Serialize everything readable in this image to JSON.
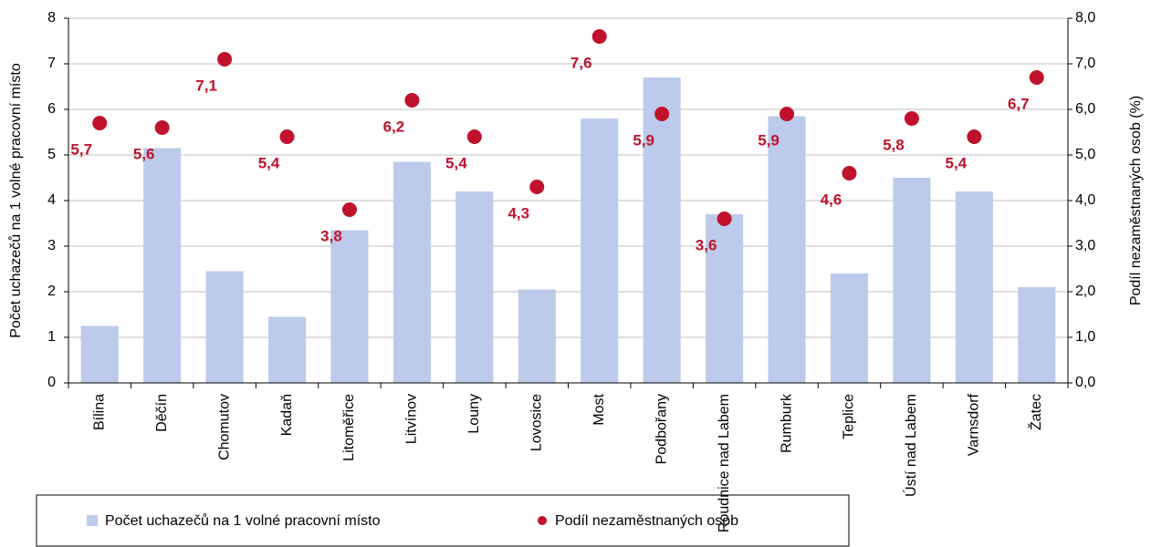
{
  "chart_data": {
    "type": "bar_scatter",
    "categories": [
      "Bílina",
      "Děčín",
      "Chomutov",
      "Kadaň",
      "Litoměřice",
      "Litvínov",
      "Louny",
      "Lovosice",
      "Most",
      "Podbořany",
      "Roudnice nad Labem",
      "Rumburk",
      "Teplice",
      "Ústí nad Labem",
      "Varnsdorf",
      "Žatec"
    ],
    "series": [
      {
        "name": "Počet uchazečů na 1 volné pracovní místo",
        "type": "bar",
        "color": "#bccbeb",
        "values": [
          1.25,
          5.15,
          2.45,
          1.45,
          3.35,
          4.85,
          4.2,
          2.05,
          5.8,
          6.7,
          3.7,
          5.85,
          2.4,
          4.5,
          4.2,
          2.1
        ]
      },
      {
        "name": "Podíl nezaměstnaných osob",
        "type": "scatter",
        "axis": "y2",
        "color": "#c0122c",
        "values": [
          5.7,
          5.6,
          7.1,
          5.4,
          3.8,
          6.2,
          5.4,
          4.3,
          7.6,
          5.9,
          3.6,
          5.9,
          4.6,
          5.8,
          5.4,
          6.7
        ],
        "value_labels": [
          "5,7",
          "5,6",
          "7,1",
          "5,4",
          "3,8",
          "6,2",
          "5,4",
          "4,3",
          "7,6",
          "5,9",
          "3,6",
          "5,9",
          "4,6",
          "5,8",
          "5,4",
          "6,7"
        ]
      }
    ],
    "ylabel": "Počet uchazečů na 1 volné pracovní místo",
    "y2label": "Podíl nezaměstnaných osob (%)",
    "ylim": [
      0,
      8
    ],
    "yticks": [
      0,
      1,
      2,
      3,
      4,
      5,
      6,
      7,
      8
    ],
    "y2lim": [
      0,
      8
    ],
    "y2ticks": [
      {
        "value": 0,
        "label": "0,0"
      },
      {
        "value": 1,
        "label": "1,0"
      },
      {
        "value": 2,
        "label": "2,0"
      },
      {
        "value": 3,
        "label": "3,0"
      },
      {
        "value": 4,
        "label": "4,0"
      },
      {
        "value": 5,
        "label": "5,0"
      },
      {
        "value": 6,
        "label": "6,0"
      },
      {
        "value": 7,
        "label": "7,0"
      },
      {
        "value": 8,
        "label": "8,0"
      }
    ],
    "grid": true
  }
}
